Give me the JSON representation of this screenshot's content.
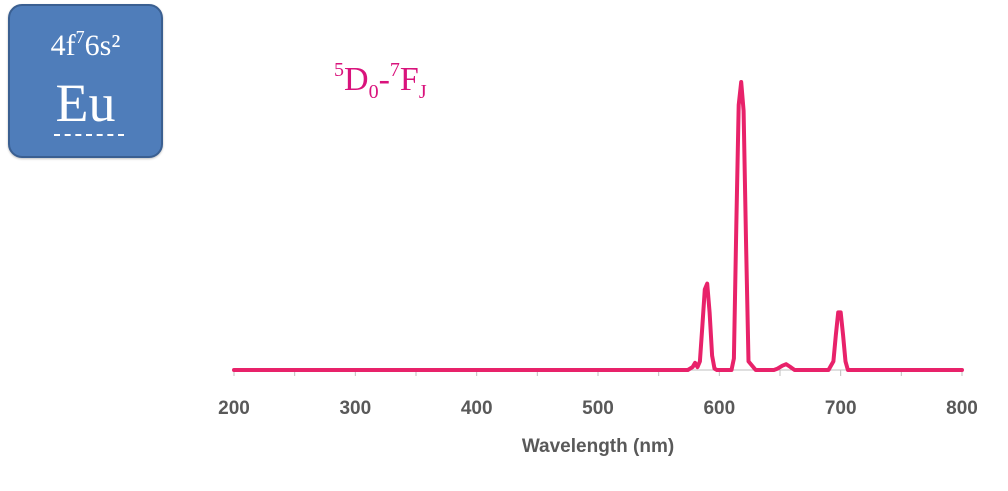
{
  "element_tile": {
    "config_base": "4f",
    "config_exp": "7",
    "config_tail": "6s²",
    "symbol": "Eu"
  },
  "transition_label": {
    "sup1": "5",
    "main1": "D",
    "sub1": "0",
    "dash": "-",
    "sup2": "7",
    "main2": "F",
    "sub2": "J"
  },
  "colors": {
    "line": "#e8226a",
    "label": "#d9137c",
    "tile": "#4f7dba",
    "axis": "#bfbfbf",
    "text": "#595959"
  },
  "chart_data": {
    "type": "line",
    "xlabel": "Wavelength (nm)",
    "ylabel": "",
    "xlim": [
      200,
      800
    ],
    "ylim": [
      0,
      1
    ],
    "xticks": [
      200,
      300,
      400,
      500,
      600,
      700,
      800
    ],
    "xtick_labels": [
      "200",
      "300",
      "400",
      "500",
      "600",
      "700",
      "800"
    ],
    "grid": false,
    "series": [
      {
        "x": [
          200,
          560,
          574,
          578,
          580,
          582,
          584,
          586,
          588,
          590,
          592,
          594,
          596,
          598,
          605,
          610,
          612,
          614,
          616,
          618,
          620,
          622,
          624,
          630,
          645,
          648,
          652,
          655,
          658,
          662,
          690,
          694,
          696,
          698,
          700,
          702,
          704,
          706,
          710,
          800
        ],
        "y": [
          0,
          0,
          0,
          0.01,
          0.025,
          0.01,
          0.03,
          0.15,
          0.28,
          0.3,
          0.2,
          0.05,
          0.005,
          0,
          0,
          0,
          0.04,
          0.5,
          0.92,
          1.0,
          0.9,
          0.45,
          0.03,
          0,
          0,
          0.005,
          0.015,
          0.02,
          0.012,
          0,
          0,
          0.03,
          0.12,
          0.2,
          0.2,
          0.12,
          0.03,
          0,
          0,
          0
        ]
      }
    ]
  }
}
